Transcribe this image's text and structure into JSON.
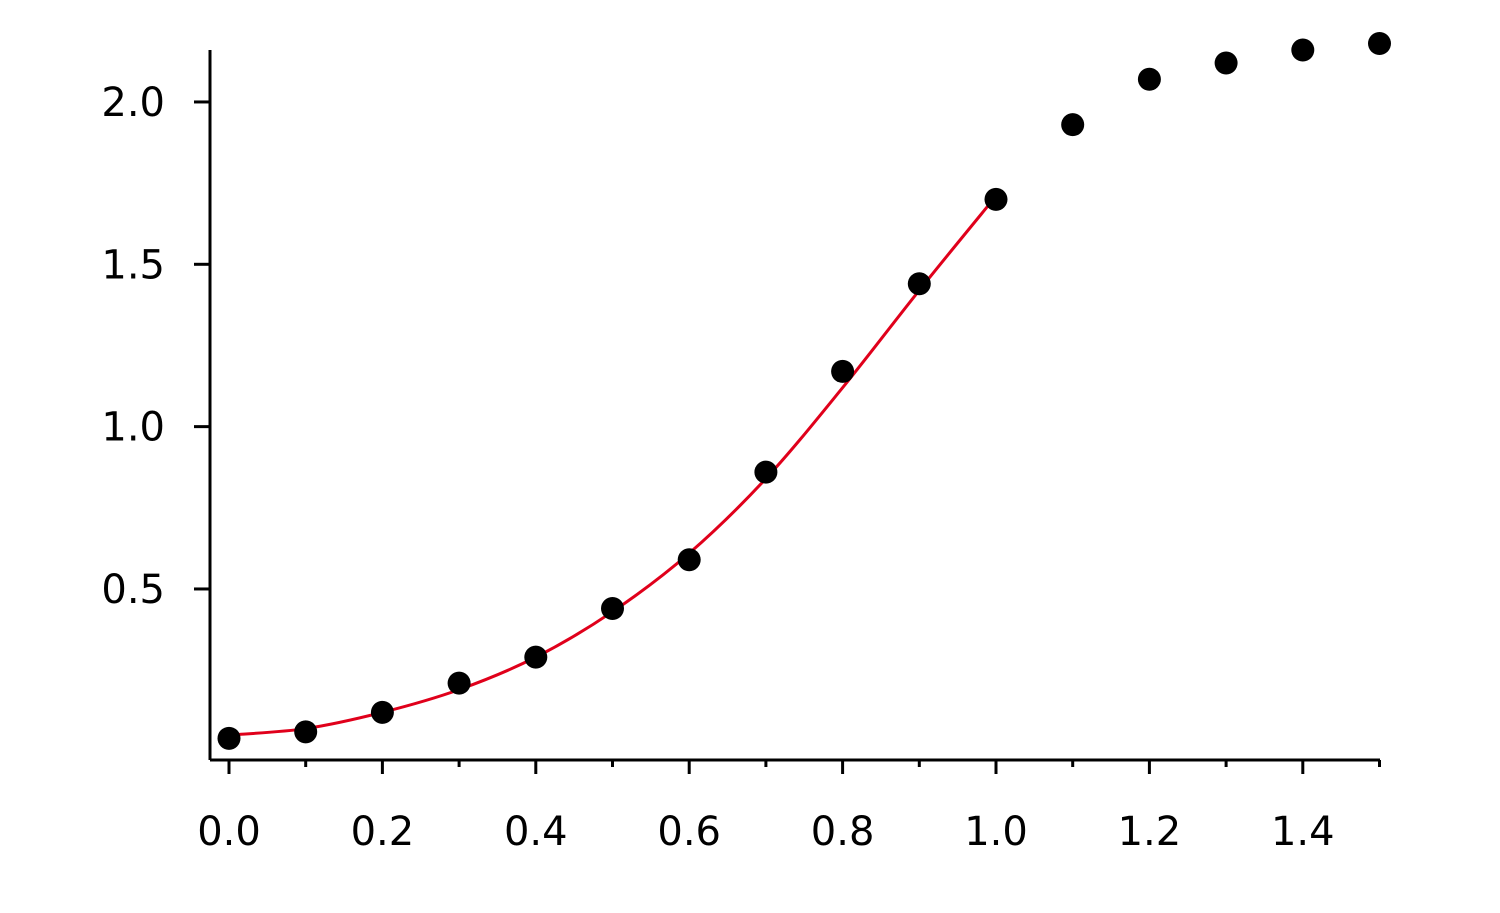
{
  "chart_data": {
    "type": "scatter",
    "title": "",
    "xlabel": "",
    "ylabel": "",
    "xlim": [
      -0.025,
      1.5
    ],
    "ylim": [
      0,
      2.2
    ],
    "grid": false,
    "legend": "none",
    "x_ticks": [
      {
        "value": 0.0,
        "label": "0.0"
      },
      {
        "value": 0.2,
        "label": "0.2"
      },
      {
        "value": 0.4,
        "label": "0.4"
      },
      {
        "value": 0.6,
        "label": "0.6"
      },
      {
        "value": 0.8,
        "label": "0.8"
      },
      {
        "value": 1.0,
        "label": "1.0"
      },
      {
        "value": 1.2,
        "label": "1.2"
      },
      {
        "value": 1.4,
        "label": "1.4"
      }
    ],
    "x_minor_ticks": [
      0.1,
      0.3,
      0.5,
      0.7,
      0.9,
      1.1,
      1.3,
      1.5
    ],
    "y_ticks": [
      {
        "value": 0.5,
        "label": "0.5"
      },
      {
        "value": 1.0,
        "label": "1.0"
      },
      {
        "value": 1.5,
        "label": "1.5"
      },
      {
        "value": 2.0,
        "label": "2.0"
      }
    ],
    "series": [
      {
        "kind": "points",
        "color": "#000000",
        "x": [
          0.0,
          0.1,
          0.2,
          0.3,
          0.4,
          0.5,
          0.6,
          0.7,
          0.8,
          0.9,
          1.0,
          1.1,
          1.2,
          1.3,
          1.4,
          1.5
        ],
        "y": [
          0.04,
          0.06,
          0.12,
          0.21,
          0.29,
          0.44,
          0.59,
          0.86,
          1.17,
          1.44,
          1.7,
          1.93,
          2.07,
          2.12,
          2.16,
          2.18
        ]
      },
      {
        "kind": "fit-line",
        "color": "#e0001b",
        "x": [
          0.0,
          0.1,
          0.2,
          0.3,
          0.4,
          0.5,
          0.6,
          0.7,
          0.8,
          0.9,
          1.0
        ],
        "y": [
          0.05,
          0.07,
          0.12,
          0.19,
          0.29,
          0.43,
          0.61,
          0.84,
          1.12,
          1.42,
          1.71
        ]
      }
    ]
  }
}
